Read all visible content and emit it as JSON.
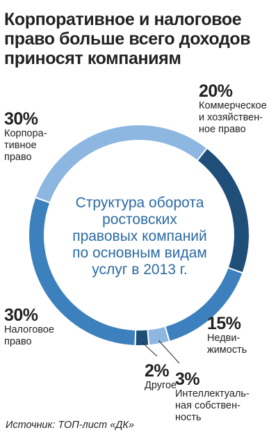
{
  "title_lines": [
    "Корпоративное и налоговое",
    "право больше всего доходов",
    "приносят компаниям"
  ],
  "center_lines": [
    "Структура оборота",
    "ростовских",
    "правовых компаний",
    "по основным видам",
    "услуг в 2013 г."
  ],
  "source": "Источник: ТОП-лист «ДК»",
  "chart_data": {
    "type": "pie",
    "slices": [
      {
        "label_lines": [
          "Коммерческое",
          "и хозяйствен-",
          "ное право"
        ],
        "value": 20,
        "value_label": "20%",
        "color": "#1f4e79"
      },
      {
        "label_lines": [
          "Недви-",
          "жимость"
        ],
        "value": 15,
        "value_label": "15%",
        "color": "#3c80bd"
      },
      {
        "label_lines": [
          "Интеллектуаль-",
          "ная собствен-",
          "ность"
        ],
        "value": 3,
        "value_label": "3%",
        "color": "#8db7e0"
      },
      {
        "label_lines": [
          "Другое"
        ],
        "value": 2,
        "value_label": "2%",
        "color": "#1f4e79"
      },
      {
        "label_lines": [
          "Налоговое",
          "право"
        ],
        "value": 30,
        "value_label": "30%",
        "color": "#3c80bd"
      },
      {
        "label_lines": [
          "Корпора-",
          "тивное",
          "право"
        ],
        "value": 30,
        "value_label": "30%",
        "color": "#8db7e0"
      }
    ]
  }
}
